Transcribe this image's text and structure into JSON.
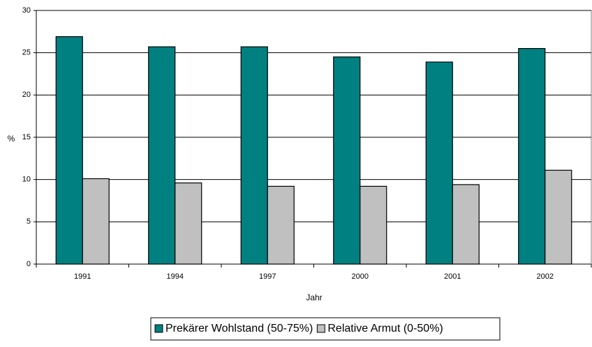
{
  "chart_data": {
    "type": "bar",
    "x_label": "Jahr",
    "y_label": "%",
    "categories": [
      "1991",
      "1994",
      "1997",
      "2000",
      "2001",
      "2002"
    ],
    "series": [
      {
        "name": "Prekärer Wohlstand (50-75%)",
        "color": "#008080",
        "values": [
          26.9,
          25.7,
          25.7,
          24.5,
          23.9,
          25.5
        ]
      },
      {
        "name": "Relative Armut (0-50%)",
        "color": "#c0c0c0",
        "values": [
          10.1,
          9.6,
          9.2,
          9.2,
          9.4,
          11.1
        ]
      }
    ],
    "ylim": [
      0,
      30
    ],
    "yticks": [
      0,
      5,
      10,
      15,
      20,
      25,
      30
    ],
    "grid": true,
    "legend": "bottom"
  }
}
